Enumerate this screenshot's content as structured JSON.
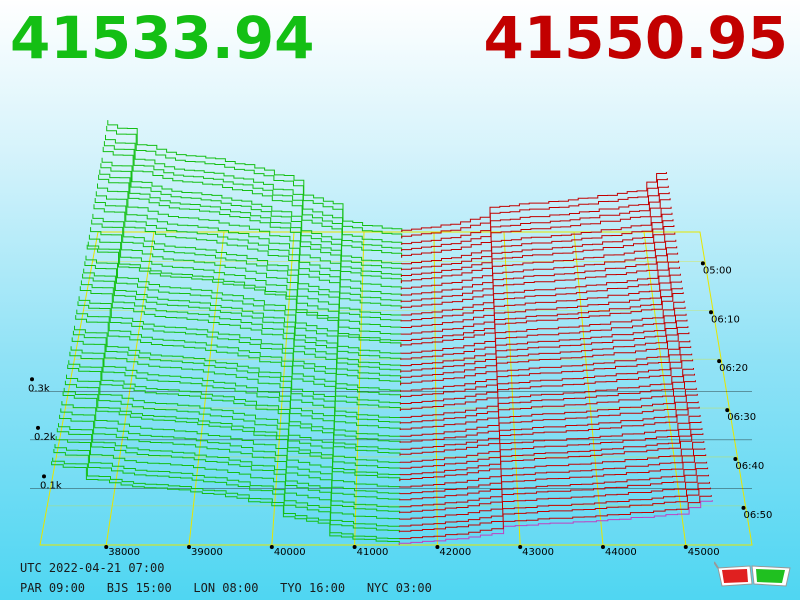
{
  "header": {
    "bid_price": "41533.94",
    "ask_price": "41550.95",
    "bid_color": "#14bf14",
    "ask_color": "#c20000"
  },
  "chart_data": {
    "type": "area",
    "description_style": "3D order book depth history",
    "x_axis": {
      "ticks": [
        "38000",
        "39000",
        "40000",
        "41000",
        "42000",
        "43000",
        "44000",
        "45000"
      ],
      "range": [
        37200,
        45800
      ]
    },
    "z_axis": {
      "ticks": [
        "0.1k",
        "0.2k",
        "0.3k"
      ],
      "range": [
        0,
        350
      ]
    },
    "time_axis": {
      "ticks": [
        "05:00",
        "06:10",
        "06:20",
        "06:30",
        "06:40",
        "06:50"
      ]
    },
    "mid_price": 41540,
    "series": [
      {
        "side": "bid",
        "color": "#14bf14"
      },
      {
        "side": "ask",
        "color": "#c20000"
      }
    ],
    "grid": true
  },
  "footer": {
    "utc": "UTC 2022-04-21 07:00",
    "cities": [
      {
        "city": "PAR",
        "time": "09:00"
      },
      {
        "city": "BJS",
        "time": "15:00"
      },
      {
        "city": "LON",
        "time": "08:00"
      },
      {
        "city": "TYO",
        "time": "16:00"
      },
      {
        "city": "NYC",
        "time": "03:00"
      }
    ]
  },
  "icons": {
    "glasses": "3d-glasses-icon"
  }
}
